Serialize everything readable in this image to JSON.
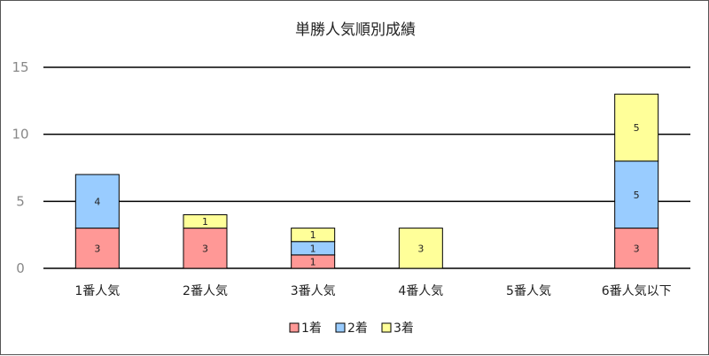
{
  "chart_data": {
    "type": "bar",
    "stacked": true,
    "title": "単勝人気順別成績",
    "xlabel": "",
    "ylabel": "",
    "ylim": [
      0,
      15
    ],
    "yticks": [
      0,
      5,
      10,
      15
    ],
    "grid": true,
    "legend_position": "bottom",
    "categories": [
      "1番人気",
      "2番人気",
      "3番人気",
      "4番人気",
      "5番人気",
      "6番人気以下"
    ],
    "series": [
      {
        "name": "1着",
        "color": "#ff9896",
        "values": [
          3,
          3,
          1,
          0,
          0,
          3
        ]
      },
      {
        "name": "2着",
        "color": "#99ccff",
        "values": [
          4,
          0,
          1,
          0,
          0,
          5
        ]
      },
      {
        "name": "3着",
        "color": "#ffff99",
        "values": [
          0,
          1,
          1,
          3,
          0,
          5
        ]
      }
    ]
  }
}
